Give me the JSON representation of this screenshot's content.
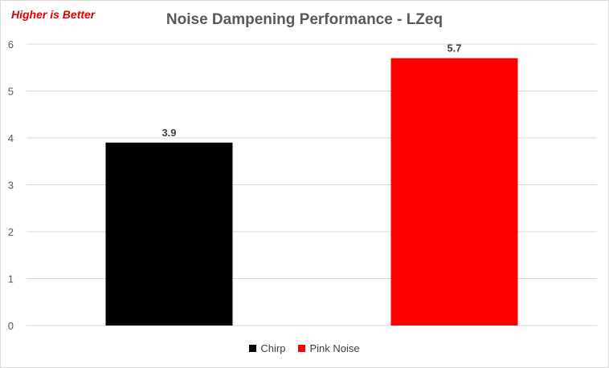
{
  "note": "Higher is Better",
  "chart_data": {
    "type": "bar",
    "title": "Noise Dampening Performance - LZeq",
    "xlabel": "",
    "ylabel": "",
    "ylim": [
      0,
      6
    ],
    "yticks": [
      0,
      1,
      2,
      3,
      4,
      5,
      6
    ],
    "grid": true,
    "legend_position": "bottom",
    "categories": [
      "Chirp",
      "Pink Noise"
    ],
    "values": [
      3.9,
      5.7
    ],
    "data_labels": [
      "3.9",
      "5.7"
    ],
    "colors": [
      "#000000",
      "#ff0000"
    ],
    "legend": [
      "Chirp",
      "Pink Noise"
    ]
  }
}
